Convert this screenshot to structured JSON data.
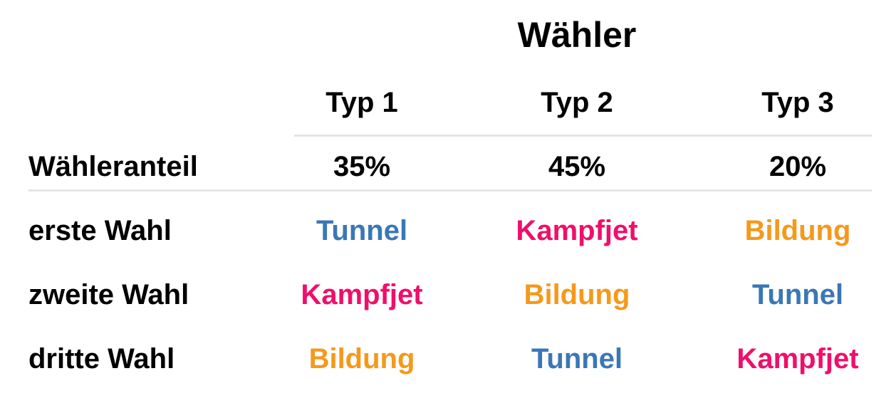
{
  "title": "Wähler",
  "columns": [
    "Typ 1",
    "Typ 2",
    "Typ 3"
  ],
  "share_row": {
    "label": "Wähleranteil",
    "values": [
      "35%",
      "45%",
      "20%"
    ]
  },
  "choice_rows": [
    {
      "label": "erste Wahl",
      "values": [
        "Tunnel",
        "Kampfjet",
        "Bildung"
      ]
    },
    {
      "label": "zweite Wahl",
      "values": [
        "Kampfjet",
        "Bildung",
        "Tunnel"
      ]
    },
    {
      "label": "dritte Wahl",
      "values": [
        "Bildung",
        "Tunnel",
        "Kampfjet"
      ]
    }
  ],
  "colors": {
    "Tunnel": "#3a77b6",
    "Kampfjet": "#ef0f6b",
    "Bildung": "#f5991b",
    "rule": "#e4e4e4",
    "text": "#000000"
  }
}
